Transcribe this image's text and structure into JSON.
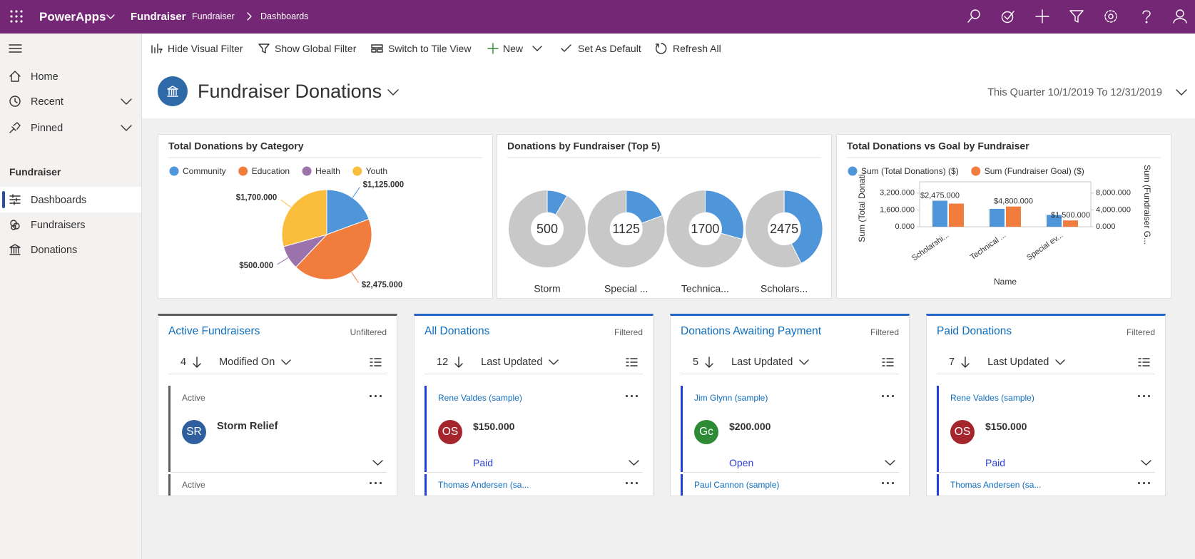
{
  "app": {
    "name": "PowerApps",
    "area": "Fundraiser",
    "breadcrumb": [
      "Fundraiser",
      "Dashboards"
    ]
  },
  "command_bar": [
    "Hide Visual Filter",
    "Show Global Filter",
    "Switch to Tile View",
    "New",
    "Set As Default",
    "Refresh All"
  ],
  "nav": {
    "items": [
      "Home",
      "Recent",
      "Pinned"
    ],
    "section": "Fundraiser",
    "section_items": [
      "Dashboards",
      "Fundraisers",
      "Donations"
    ]
  },
  "dashboard": {
    "title": "Fundraiser Donations",
    "period": "This Quarter 10/1/2019 To 12/31/2019"
  },
  "chart_data": [
    {
      "type": "pie",
      "title": "Total Donations by Category",
      "categories": [
        "Community",
        "Education",
        "Health",
        "Youth"
      ],
      "values": [
        1125,
        2475,
        500,
        1700
      ],
      "value_labels": [
        "$1,125.000",
        "$2,475.000",
        "$500.000",
        "$1,700.000"
      ],
      "colors": [
        "#4e95d9",
        "#f07c3e",
        "#9b72ac",
        "#fbbd3c"
      ]
    },
    {
      "type": "donut",
      "title": "Donations by Fundraiser (Top 5)",
      "categories": [
        "Storm",
        "Special ...",
        "Technica...",
        "Scholars..."
      ],
      "values": [
        500,
        1125,
        1700,
        2475
      ],
      "color": "#4e95d9",
      "rest_color": "#c8c8c8"
    },
    {
      "type": "bar",
      "title": "Total Donations vs Goal by Fundraiser",
      "categories": [
        "Scholarshi...",
        "Technical ...",
        "Special ev..."
      ],
      "x_label": "Name",
      "y_label": "Sum (Total Donati...",
      "y2_label": "Sum (Fundraiser G...",
      "ylim": [
        0,
        4000
      ],
      "yticks": [
        {
          "value": 0,
          "label": "0.000"
        },
        {
          "value": 1600,
          "label": "1,600.000"
        },
        {
          "value": 3200,
          "label": "3,200.000"
        }
      ],
      "y2lim": [
        0,
        10000
      ],
      "y2ticks": [
        {
          "value": 0,
          "label": "0.000"
        },
        {
          "value": 4000,
          "label": "4,000.000"
        },
        {
          "value": 8000,
          "label": "8,000.000"
        }
      ],
      "series": [
        {
          "name": "Sum (Total Donations) ($)",
          "color": "#4e95d9",
          "values": [
            2475,
            1700,
            1125
          ],
          "value_labels": [
            "$2,475.000",
            null,
            null
          ]
        },
        {
          "name": "Sum (Fundraiser Goal) ($)",
          "color": "#f07c3e",
          "axis": "y2",
          "values": [
            5500,
            4800,
            1500
          ],
          "value_labels": [
            null,
            "$4,800.000",
            "$1,500.000"
          ]
        }
      ]
    }
  ],
  "cards": [
    {
      "title": "Active Fundraisers",
      "filter": "Unfiltered",
      "count": 4,
      "sort": "Modified On",
      "accent": "#605e5c",
      "records": [
        {
          "status": "Active",
          "initials": "SR",
          "avatar_color": "#2f5f9e",
          "name": "Storm Relief"
        },
        {
          "status": "Active"
        }
      ]
    },
    {
      "title": "All Donations",
      "filter": "Filtered",
      "count": 12,
      "sort": "Last Updated",
      "accent": "#1f3fe0",
      "records": [
        {
          "donor": "Rene Valdes (sample)",
          "initials": "OS",
          "avatar_color": "#a4262c",
          "amount": "$150.000",
          "status": "Paid"
        },
        {
          "donor": "Thomas Andersen (sa..."
        }
      ]
    },
    {
      "title": "Donations Awaiting Payment",
      "filter": "Filtered",
      "count": 5,
      "sort": "Last Updated",
      "accent": "#1f3fe0",
      "records": [
        {
          "donor": "Jim Glynn (sample)",
          "initials": "Gc",
          "avatar_color": "#2d8a35",
          "amount": "$200.000",
          "status": "Open"
        },
        {
          "donor": "Paul Cannon (sample)"
        }
      ]
    },
    {
      "title": "Paid Donations",
      "filter": "Filtered",
      "count": 7,
      "sort": "Last Updated",
      "accent": "#1f3fe0",
      "records": [
        {
          "donor": "Rene Valdes (sample)",
          "initials": "OS",
          "avatar_color": "#a4262c",
          "amount": "$150.000",
          "status": "Paid"
        },
        {
          "donor": "Thomas Andersen (sa..."
        }
      ]
    }
  ]
}
